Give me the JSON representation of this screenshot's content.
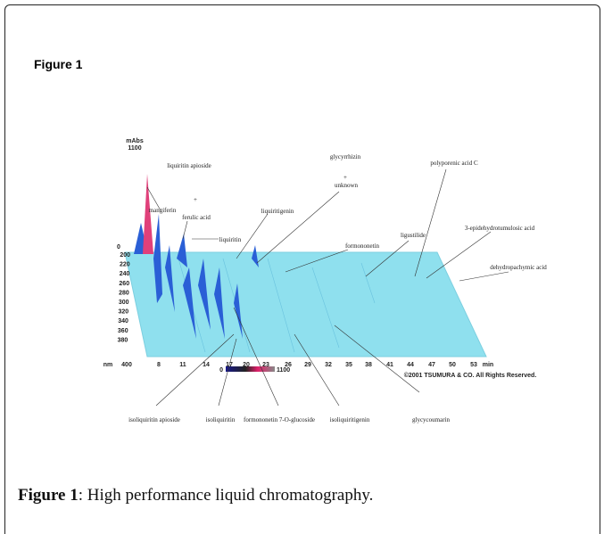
{
  "heading": "Figure 1",
  "figure": {
    "y_unit": "mAbs",
    "y_max": "1100",
    "y_zero": "0",
    "wavelength_unit": "nm",
    "wavelengths": [
      "200",
      "220",
      "240",
      "260",
      "280",
      "300",
      "320",
      "340",
      "360",
      "380",
      "400"
    ],
    "time_unit": "min",
    "times": [
      "8",
      "11",
      "14",
      "17",
      "20",
      "23",
      "26",
      "29",
      "32",
      "35",
      "38",
      "41",
      "44",
      "47",
      "50",
      "53"
    ],
    "colorbar": [
      "0",
      "1100"
    ],
    "plus": "+",
    "compounds": [
      "mangiferin",
      "liquiritin apioside",
      "ferulic acid",
      "liquiritin",
      "liquiritigenin",
      "glycyrrhizin",
      "unknown",
      "formononetin",
      "ligustilide",
      "polyporenic acid C",
      "3-epidehydrotumulosic acid",
      "dehydropachymic acid",
      "isoliquiritin apioside",
      "isoliquiritin",
      "formononetin 7-O-glucoside",
      "isoliquiritigenin",
      "glycycoumarin"
    ],
    "copyright": "©2001 TSUMURA & CO. All Rights Reserved."
  },
  "caption": {
    "label": "Figure 1",
    "text": ": High performance liquid chromatography."
  }
}
